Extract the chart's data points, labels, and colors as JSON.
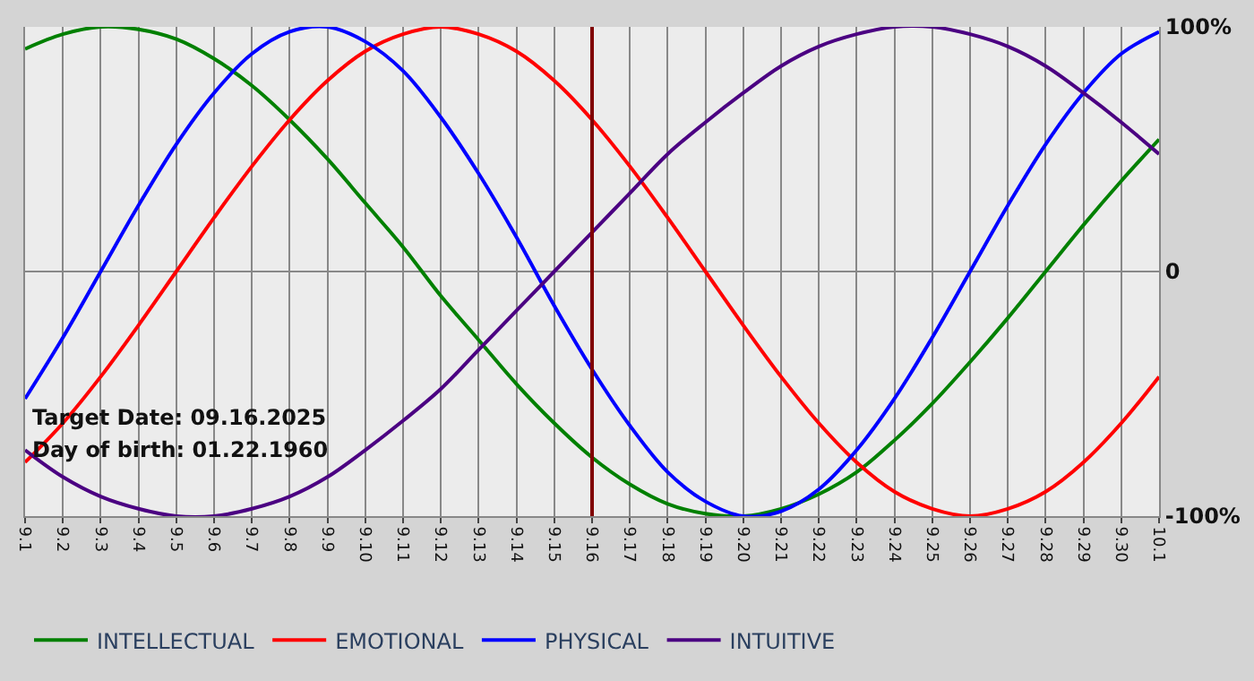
{
  "chart_data": {
    "type": "line",
    "categories": [
      "9.1",
      "9.2",
      "9.3",
      "9.4",
      "9.5",
      "9.6",
      "9.7",
      "9.8",
      "9.9",
      "9.10",
      "9.11",
      "9.12",
      "9.13",
      "9.14",
      "9.15",
      "9.16",
      "9.17",
      "9.18",
      "9.19",
      "9.20",
      "9.21",
      "9.22",
      "9.23",
      "9.24",
      "9.25",
      "9.26",
      "9.27",
      "9.28",
      "9.29",
      "9.30",
      "10.1"
    ],
    "series": [
      {
        "name": "INTELLECTUAL",
        "color": "#008000",
        "values": [
          91,
          97,
          100,
          99,
          95,
          87,
          76,
          62,
          46,
          28,
          10,
          -10,
          -28,
          -46,
          -62,
          -76,
          -87,
          -95,
          -99,
          -100,
          -97,
          -91,
          -82,
          -69,
          -54,
          -37,
          -19,
          0,
          19,
          37,
          54
        ]
      },
      {
        "name": "EMOTIONAL",
        "color": "#ff0000",
        "values": [
          -78,
          -62,
          -43,
          -22,
          0,
          22,
          43,
          62,
          78,
          90,
          97,
          100,
          97,
          90,
          78,
          62,
          43,
          22,
          0,
          -22,
          -43,
          -62,
          -78,
          -90,
          -97,
          -100,
          -97,
          -90,
          -78,
          -62,
          -43
        ]
      },
      {
        "name": "PHYSICAL",
        "color": "#0000ff",
        "values": [
          -52,
          -27,
          0,
          27,
          52,
          73,
          89,
          98,
          100,
          94,
          82,
          63,
          40,
          14,
          -14,
          -40,
          -63,
          -82,
          -94,
          -100,
          -98,
          -89,
          -73,
          -52,
          -27,
          0,
          27,
          52,
          73,
          89,
          98
        ]
      },
      {
        "name": "INTUITIVE",
        "color": "#4b0082",
        "values": [
          -73,
          -84,
          -92,
          -97,
          -100,
          -100,
          -97,
          -92,
          -84,
          -73,
          -61,
          -48,
          -32,
          -16,
          0,
          16,
          32,
          48,
          61,
          73,
          84,
          92,
          97,
          100,
          100,
          97,
          92,
          84,
          73,
          61,
          48
        ]
      }
    ],
    "ylim": [
      -100,
      100
    ],
    "yticks": [
      {
        "value": -100,
        "label": "-100%"
      },
      0,
      {
        "value": 100,
        "label": "100%"
      }
    ],
    "ref_lines": [
      {
        "axis": "x",
        "value": "9.16",
        "color": "#800000"
      }
    ],
    "annotations": [
      "Target Date: 09.16.2025",
      "Day of birth: 01.22.1960"
    ],
    "grid": true,
    "legend": "bottom left",
    "marker": "none",
    "line_style": "solid"
  }
}
